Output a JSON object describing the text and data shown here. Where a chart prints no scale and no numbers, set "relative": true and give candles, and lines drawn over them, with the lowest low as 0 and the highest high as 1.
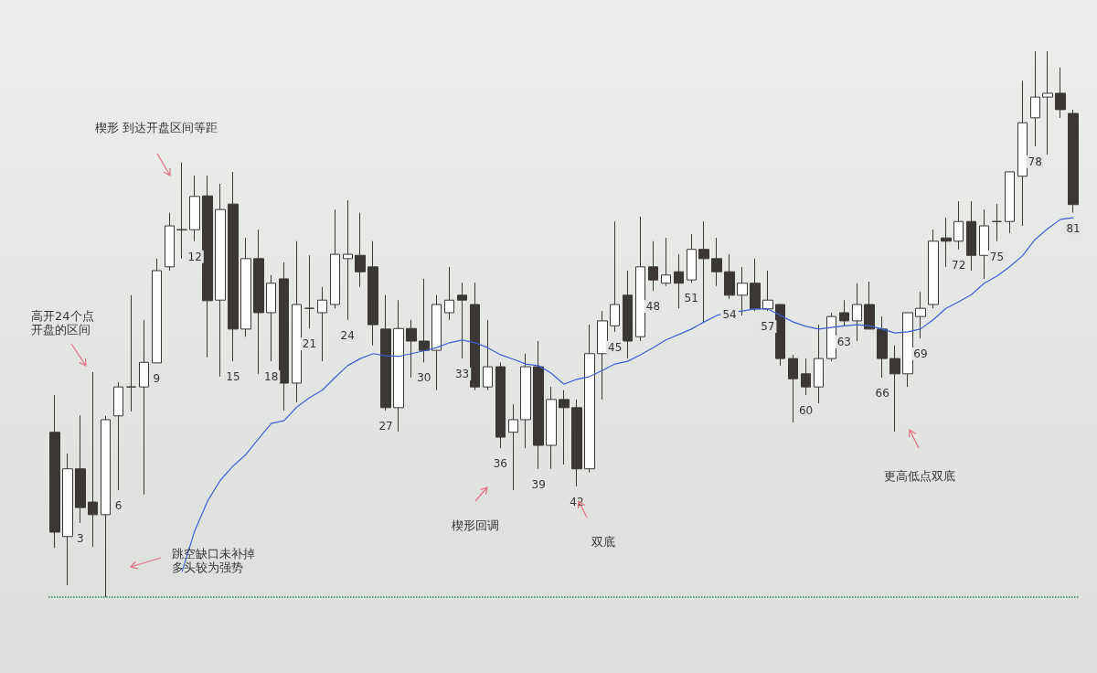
{
  "chart_data": {
    "type": "candlestick",
    "relative": true,
    "grid": false,
    "categories": [
      null,
      null,
      "3",
      null,
      null,
      "6",
      null,
      null,
      "9",
      null,
      null,
      "12",
      null,
      null,
      "15",
      null,
      null,
      "18",
      null,
      null,
      "21",
      null,
      null,
      "24",
      null,
      null,
      "27",
      null,
      null,
      "30",
      null,
      null,
      "33",
      null,
      null,
      "36",
      null,
      null,
      "39",
      null,
      null,
      "42",
      null,
      null,
      "45",
      null,
      null,
      "48",
      null,
      null,
      "51",
      null,
      null,
      "54",
      null,
      null,
      "57",
      null,
      null,
      "60",
      null,
      null,
      "63",
      null,
      null,
      "66",
      null,
      null,
      "69",
      null,
      null,
      "72",
      null,
      null,
      "75",
      null,
      null,
      "78",
      null,
      null,
      "81"
    ],
    "series": [
      {
        "ohlc": [
          [
            0.302,
            0.37,
            0.09,
            0.119
          ],
          [
            0.111,
            0.263,
            0.022,
            0.235
          ],
          [
            0.235,
            0.333,
            0.136,
            0.164
          ],
          [
            0.174,
            0.412,
            0.092,
            0.151
          ],
          [
            0.151,
            0.332,
            0,
            0.325
          ],
          [
            0.332,
            0.394,
            0.196,
            0.385
          ],
          [
            0.385,
            0.553,
            0.34,
            0.385
          ],
          [
            0.385,
            0.508,
            0.188,
            0.43
          ],
          [
            0.429,
            0.62,
            0.429,
            0.598
          ],
          [
            0.605,
            0.704,
            0.598,
            0.68
          ],
          [
            0.673,
            0.796,
            0.62,
            0.673
          ],
          [
            0.673,
            0.772,
            0.652,
            0.734
          ],
          [
            0.735,
            0.772,
            0.439,
            0.543
          ],
          [
            0.544,
            0.757,
            0.404,
            0.71
          ],
          [
            0.72,
            0.779,
            0.432,
            0.491
          ],
          [
            0.491,
            0.658,
            0.477,
            0.62
          ],
          [
            0.62,
            0.673,
            0.409,
            0.521
          ],
          [
            0.521,
            0.59,
            0.432,
            0.575
          ],
          [
            0.583,
            0.613,
            0.342,
            0.392
          ],
          [
            0.392,
            0.652,
            0.357,
            0.536
          ],
          [
            0.529,
            0.626,
            0.492,
            0.529
          ],
          [
            0.521,
            0.568,
            0.432,
            0.544
          ],
          [
            0.536,
            0.71,
            0.529,
            0.628
          ],
          [
            0.62,
            0.727,
            0.508,
            0.628
          ],
          [
            0.626,
            0.704,
            0.568,
            0.596
          ],
          [
            0.605,
            0.652,
            0.461,
            0.499
          ],
          [
            0.491,
            0.553,
            0.342,
            0.347
          ],
          [
            0.347,
            0.544,
            0.303,
            0.492
          ],
          [
            0.492,
            0.508,
            0.402,
            0.469
          ],
          [
            0.469,
            0.583,
            0.43,
            0.452
          ],
          [
            0.452,
            0.553,
            0.379,
            0.536
          ],
          [
            0.521,
            0.605,
            0.508,
            0.544
          ],
          [
            0.553,
            0.576,
            0.437,
            0.544
          ],
          [
            0.536,
            0.576,
            0.379,
            0.385
          ],
          [
            0.385,
            0.508,
            0.379,
            0.422
          ],
          [
            0.422,
            0.43,
            0.273,
            0.293
          ],
          [
            0.302,
            0.353,
            0.196,
            0.325
          ],
          [
            0.325,
            0.446,
            0.273,
            0.422
          ],
          [
            0.422,
            0.469,
            0.235,
            0.278
          ],
          [
            0.278,
            0.385,
            0.235,
            0.362
          ],
          [
            0.362,
            0.379,
            0.243,
            0.347
          ],
          [
            0.347,
            0.362,
            0.203,
            0.235
          ],
          [
            0.235,
            0.499,
            0.228,
            0.446
          ],
          [
            0.446,
            0.524,
            0.362,
            0.506
          ],
          [
            0.497,
            0.688,
            0.486,
            0.536
          ],
          [
            0.553,
            0.598,
            0.437,
            0.469
          ],
          [
            0.477,
            0.697,
            0.469,
            0.605
          ],
          [
            0.605,
            0.652,
            0.561,
            0.581
          ],
          [
            0.575,
            0.658,
            0.57,
            0.59
          ],
          [
            0.596,
            0.628,
            0.529,
            0.575
          ],
          [
            0.581,
            0.665,
            0.576,
            0.637
          ],
          [
            0.637,
            0.688,
            0.503,
            0.62
          ],
          [
            0.62,
            0.658,
            0.57,
            0.596
          ],
          [
            0.596,
            0.628,
            0.546,
            0.553
          ],
          [
            0.553,
            0.605,
            0.516,
            0.575
          ],
          [
            0.575,
            0.62,
            0.524,
            0.528
          ],
          [
            0.528,
            0.598,
            0.524,
            0.544
          ],
          [
            0.536,
            0.536,
            0.424,
            0.437
          ],
          [
            0.437,
            0.444,
            0.32,
            0.4
          ],
          [
            0.409,
            0.437,
            0.37,
            0.385
          ],
          [
            0.385,
            0.499,
            0.355,
            0.437
          ],
          [
            0.437,
            0.521,
            0.432,
            0.514
          ],
          [
            0.521,
            0.544,
            0.496,
            0.506
          ],
          [
            0.506,
            0.575,
            0.469,
            0.536
          ],
          [
            0.536,
            0.578,
            0.491,
            0.491
          ],
          [
            0.491,
            0.514,
            0.402,
            0.437
          ],
          [
            0.437,
            0.461,
            0.303,
            0.409
          ],
          [
            0.409,
            0.521,
            0.385,
            0.521
          ],
          [
            0.514,
            0.559,
            0.474,
            0.529
          ],
          [
            0.536,
            0.673,
            0.529,
            0.652
          ],
          [
            0.658,
            0.695,
            0.605,
            0.652
          ],
          [
            0.652,
            0.725,
            0.637,
            0.688
          ],
          [
            0.688,
            0.725,
            0.598,
            0.626
          ],
          [
            0.626,
            0.71,
            0.583,
            0.68
          ],
          [
            0.688,
            0.72,
            0.652,
            0.688
          ],
          [
            0.688,
            0.779,
            0.667,
            0.779
          ],
          [
            0.771,
            0.946,
            0.68,
            0.869
          ],
          [
            0.878,
            1,
            0.826,
            0.916
          ],
          [
            0.916,
            1,
            0.811,
            0.923
          ],
          [
            0.923,
            0.97,
            0.878,
            0.893
          ],
          [
            0.886,
            0.893,
            0.704,
            0.719
          ]
        ]
      },
      {
        "type": "line",
        "color": "#3f5fd6",
        "marker": "none",
        "line_style": "solid",
        "values": [
          null,
          null,
          null,
          null,
          null,
          null,
          null,
          null,
          null,
          null,
          0.047,
          0.122,
          0.176,
          0.214,
          0.24,
          0.261,
          0.29,
          0.318,
          0.323,
          0.348,
          0.365,
          0.379,
          0.402,
          0.424,
          0.437,
          0.446,
          0.442,
          0.441,
          0.446,
          0.451,
          0.457,
          0.466,
          0.471,
          0.466,
          0.457,
          0.444,
          0.436,
          0.427,
          0.424,
          0.41,
          0.39,
          0.399,
          0.404,
          0.415,
          0.427,
          0.432,
          0.444,
          0.457,
          0.471,
          0.481,
          0.491,
          0.504,
          0.516,
          0.521,
          0.524,
          0.528,
          0.528,
          0.516,
          0.504,
          0.496,
          0.491,
          0.494,
          0.497,
          0.499,
          0.497,
          0.491,
          0.484,
          0.486,
          0.491,
          0.508,
          0.529,
          0.541,
          0.554,
          0.575,
          0.588,
          0.605,
          0.625,
          0.655,
          0.675,
          0.692,
          0.695
        ]
      }
    ],
    "ref_lines": [
      {
        "axis": "y",
        "value": 0,
        "color": "#2e8b57",
        "line_style": "dotted"
      }
    ],
    "annotations": [
      "楔形 到达开盘区间等距",
      "高开24个点开盘的区间",
      "跳空缺口未补掉多头较为强势",
      "楔形回调",
      "双底",
      "更高低点双底"
    ]
  }
}
